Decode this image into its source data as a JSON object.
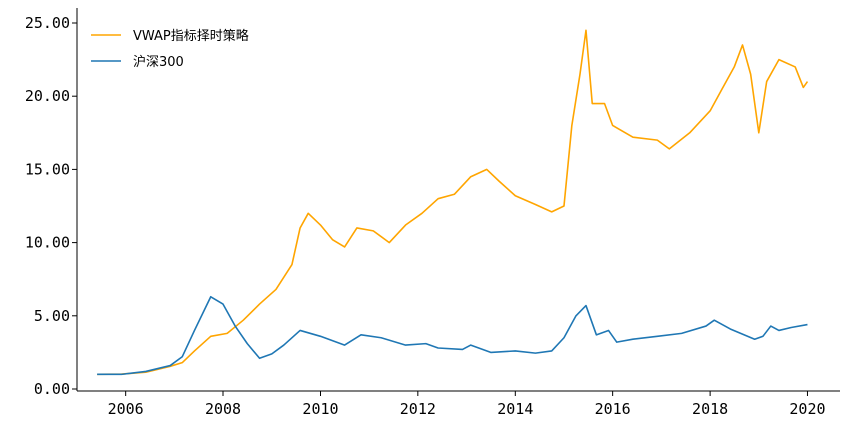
{
  "chart_data": {
    "type": "line",
    "title": "",
    "xlabel": "",
    "ylabel": "",
    "xlim": [
      "2005-01-01",
      "2020-09-01"
    ],
    "ylim": [
      0,
      25
    ],
    "x_ticks": [
      "2006",
      "2008",
      "2010",
      "2012",
      "2014",
      "2016",
      "2018",
      "2020"
    ],
    "y_ticks": [
      "0.00",
      "5.00",
      "10.00",
      "15.00",
      "20.00",
      "25.00"
    ],
    "legend_position": "top-left",
    "grid": false,
    "series": [
      {
        "name": "VWAP指标择时策略",
        "color": "#ffa500",
        "points": [
          [
            "2005-06-01",
            1.0
          ],
          [
            "2005-12-01",
            1.02
          ],
          [
            "2006-06-01",
            1.15
          ],
          [
            "2006-12-01",
            1.55
          ],
          [
            "2007-03-01",
            1.8
          ],
          [
            "2007-06-01",
            2.6
          ],
          [
            "2007-10-01",
            3.6
          ],
          [
            "2008-02-01",
            3.8
          ],
          [
            "2008-06-01",
            4.7
          ],
          [
            "2008-10-01",
            5.8
          ],
          [
            "2009-02-01",
            6.8
          ],
          [
            "2009-06-01",
            8.5
          ],
          [
            "2009-08-01",
            11.0
          ],
          [
            "2009-10-01",
            12.0
          ],
          [
            "2010-01-01",
            11.2
          ],
          [
            "2010-04-01",
            10.2
          ],
          [
            "2010-07-01",
            9.7
          ],
          [
            "2010-10-01",
            11.0
          ],
          [
            "2011-02-01",
            10.8
          ],
          [
            "2011-06-01",
            10.0
          ],
          [
            "2011-10-01",
            11.2
          ],
          [
            "2012-02-01",
            12.0
          ],
          [
            "2012-06-01",
            13.0
          ],
          [
            "2012-10-01",
            13.3
          ],
          [
            "2013-02-01",
            14.5
          ],
          [
            "2013-06-01",
            15.0
          ],
          [
            "2013-09-01",
            14.2
          ],
          [
            "2014-01-01",
            13.2
          ],
          [
            "2014-06-01",
            12.6
          ],
          [
            "2014-10-01",
            12.1
          ],
          [
            "2015-01-01",
            12.5
          ],
          [
            "2015-03-01",
            18.0
          ],
          [
            "2015-05-01",
            21.5
          ],
          [
            "2015-06-15",
            24.5
          ],
          [
            "2015-08-01",
            19.5
          ],
          [
            "2015-11-01",
            19.5
          ],
          [
            "2016-01-01",
            18.0
          ],
          [
            "2016-06-01",
            17.2
          ],
          [
            "2016-12-01",
            17.0
          ],
          [
            "2017-03-01",
            16.4
          ],
          [
            "2017-08-01",
            17.5
          ],
          [
            "2018-01-01",
            19.0
          ],
          [
            "2018-04-01",
            20.5
          ],
          [
            "2018-07-01",
            22.0
          ],
          [
            "2018-09-01",
            23.5
          ],
          [
            "2018-11-01",
            21.5
          ],
          [
            "2019-01-01",
            17.5
          ],
          [
            "2019-03-01",
            21.0
          ],
          [
            "2019-06-01",
            22.5
          ],
          [
            "2019-10-01",
            22.0
          ],
          [
            "2019-12-01",
            20.6
          ],
          [
            "2020-01-01",
            21.0
          ]
        ]
      },
      {
        "name": "沪深300",
        "color": "#1f77b4",
        "points": [
          [
            "2005-06-01",
            1.0
          ],
          [
            "2005-12-01",
            1.0
          ],
          [
            "2006-06-01",
            1.2
          ],
          [
            "2006-12-01",
            1.6
          ],
          [
            "2007-03-01",
            2.2
          ],
          [
            "2007-06-01",
            4.0
          ],
          [
            "2007-10-01",
            6.3
          ],
          [
            "2008-01-01",
            5.8
          ],
          [
            "2008-04-01",
            4.3
          ],
          [
            "2008-07-01",
            3.1
          ],
          [
            "2008-10-01",
            2.1
          ],
          [
            "2009-01-01",
            2.4
          ],
          [
            "2009-04-01",
            3.0
          ],
          [
            "2009-08-01",
            4.0
          ],
          [
            "2010-01-01",
            3.6
          ],
          [
            "2010-07-01",
            3.0
          ],
          [
            "2010-11-01",
            3.7
          ],
          [
            "2011-04-01",
            3.5
          ],
          [
            "2011-10-01",
            3.0
          ],
          [
            "2012-03-01",
            3.1
          ],
          [
            "2012-06-01",
            2.8
          ],
          [
            "2012-12-01",
            2.7
          ],
          [
            "2013-02-01",
            3.0
          ],
          [
            "2013-07-01",
            2.5
          ],
          [
            "2014-01-01",
            2.6
          ],
          [
            "2014-06-01",
            2.45
          ],
          [
            "2014-10-01",
            2.6
          ],
          [
            "2015-01-01",
            3.5
          ],
          [
            "2015-04-01",
            5.0
          ],
          [
            "2015-06-15",
            5.7
          ],
          [
            "2015-09-01",
            3.7
          ],
          [
            "2015-12-01",
            4.0
          ],
          [
            "2016-02-01",
            3.2
          ],
          [
            "2016-06-01",
            3.4
          ],
          [
            "2016-12-01",
            3.6
          ],
          [
            "2017-06-01",
            3.8
          ],
          [
            "2017-12-01",
            4.3
          ],
          [
            "2018-02-01",
            4.7
          ],
          [
            "2018-06-01",
            4.1
          ],
          [
            "2018-12-01",
            3.4
          ],
          [
            "2019-02-01",
            3.6
          ],
          [
            "2019-04-01",
            4.3
          ],
          [
            "2019-06-01",
            4.0
          ],
          [
            "2019-09-01",
            4.2
          ],
          [
            "2020-01-01",
            4.4
          ]
        ]
      }
    ]
  }
}
